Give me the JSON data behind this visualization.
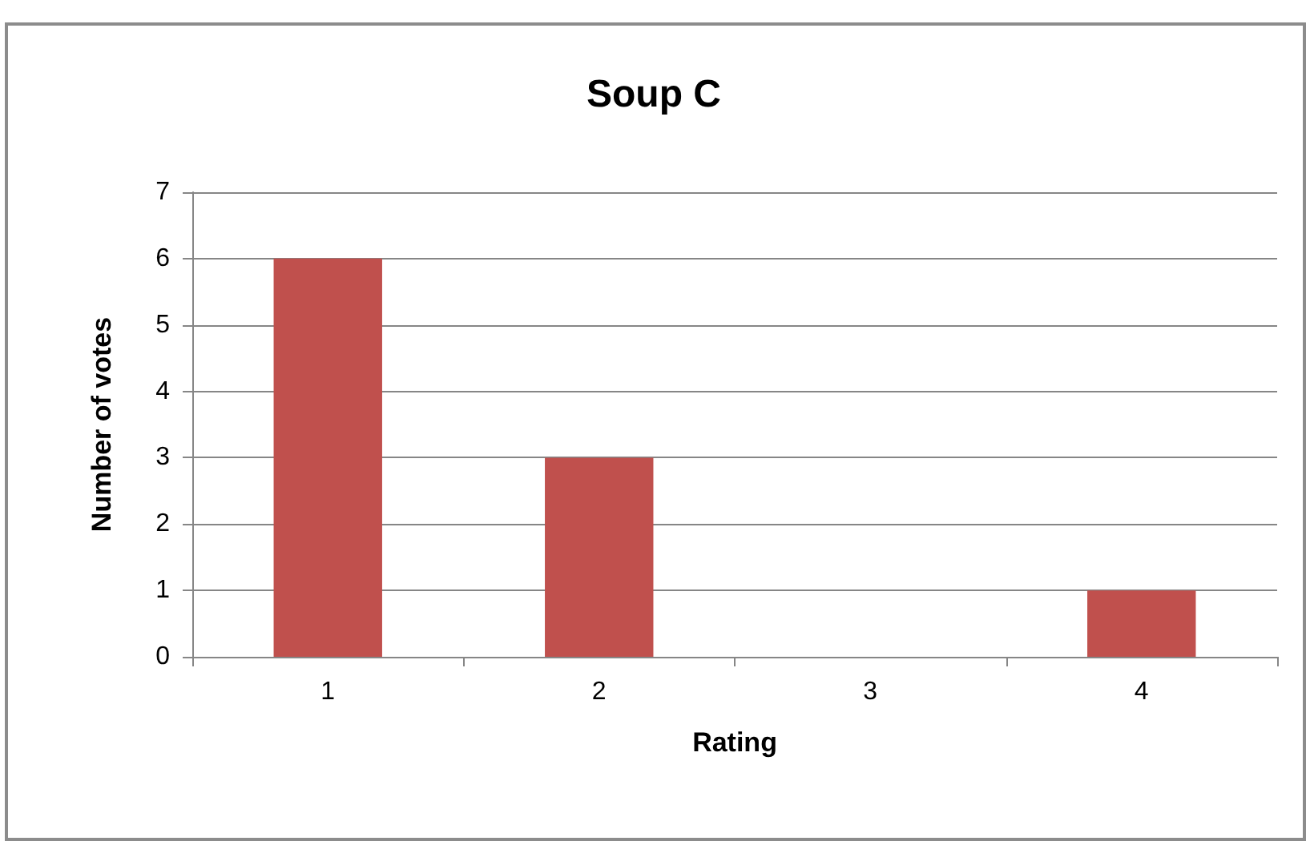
{
  "chart_data": {
    "type": "bar",
    "title": "Soup C",
    "xlabel": "Rating",
    "ylabel": "Number of votes",
    "categories": [
      "1",
      "2",
      "3",
      "4"
    ],
    "values": [
      6,
      3,
      0,
      1
    ],
    "color": "#c0504d",
    "ylim": [
      0,
      7
    ],
    "yticks": [
      0,
      1,
      2,
      3,
      4,
      5,
      6,
      7
    ],
    "grid": "y"
  }
}
